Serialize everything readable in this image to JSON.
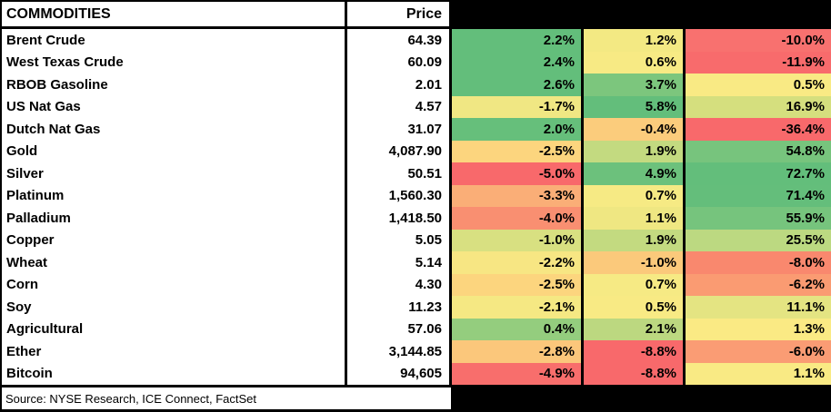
{
  "header": {
    "commodities_label": "COMMODITIES",
    "price_label": "Price"
  },
  "source": {
    "text": "Source: NYSE Research, ICE Connect, FactSet"
  },
  "palette": {
    "scale_green": "#63BE7B",
    "scale_yellow": "#F8EA84",
    "scale_red": "#F8696B",
    "grid_border": "#000000",
    "cell_bg": "#FFFFFF"
  },
  "rows": [
    {
      "name": "Brent Crude",
      "price": "64.39",
      "chg1": {
        "v": "2.2%",
        "c": "#63BE7B"
      },
      "chg2": {
        "v": "1.2%",
        "c": "#F3E983"
      },
      "chg3": {
        "v": "-10.0%",
        "c": "#F8716F"
      }
    },
    {
      "name": "West Texas Crude",
      "price": "60.09",
      "chg1": {
        "v": "2.4%",
        "c": "#63BE7B"
      },
      "chg2": {
        "v": "0.6%",
        "c": "#F7EA84"
      },
      "chg3": {
        "v": "-11.9%",
        "c": "#F86B6C"
      }
    },
    {
      "name": "RBOB Gasoline",
      "price": "2.01",
      "chg1": {
        "v": "2.6%",
        "c": "#63BE7B"
      },
      "chg2": {
        "v": "3.7%",
        "c": "#7CC67D"
      },
      "chg3": {
        "v": "0.5%",
        "c": "#F9EA84"
      }
    },
    {
      "name": "US Nat Gas",
      "price": "4.57",
      "chg1": {
        "v": "-1.7%",
        "c": "#F0E783"
      },
      "chg2": {
        "v": "5.8%",
        "c": "#63BE7B"
      },
      "chg3": {
        "v": "16.9%",
        "c": "#D5DF7E"
      }
    },
    {
      "name": "Dutch Nat Gas",
      "price": "31.07",
      "chg1": {
        "v": "2.0%",
        "c": "#66BF7B"
      },
      "chg2": {
        "v": "-0.4%",
        "c": "#FBCC7C"
      },
      "chg3": {
        "v": "-36.4%",
        "c": "#F8696B"
      }
    },
    {
      "name": "Gold",
      "price": "4,087.90",
      "chg1": {
        "v": "-2.5%",
        "c": "#FCD57E"
      },
      "chg2": {
        "v": "1.9%",
        "c": "#C3DA80"
      },
      "chg3": {
        "v": "54.8%",
        "c": "#77C47D"
      }
    },
    {
      "name": "Silver",
      "price": "50.51",
      "chg1": {
        "v": "-5.0%",
        "c": "#F8696B"
      },
      "chg2": {
        "v": "4.9%",
        "c": "#6CC17C"
      },
      "chg3": {
        "v": "72.7%",
        "c": "#63BE7B"
      }
    },
    {
      "name": "Platinum",
      "price": "1,560.30",
      "chg1": {
        "v": "-3.3%",
        "c": "#FAAE77"
      },
      "chg2": {
        "v": "0.7%",
        "c": "#F6EA84"
      },
      "chg3": {
        "v": "71.4%",
        "c": "#64BE7B"
      }
    },
    {
      "name": "Palladium",
      "price": "1,418.50",
      "chg1": {
        "v": "-4.0%",
        "c": "#F98F71"
      },
      "chg2": {
        "v": "1.1%",
        "c": "#EFE782"
      },
      "chg3": {
        "v": "55.9%",
        "c": "#76C47D"
      }
    },
    {
      "name": "Copper",
      "price": "5.05",
      "chg1": {
        "v": "-1.0%",
        "c": "#D8E081"
      },
      "chg2": {
        "v": "1.9%",
        "c": "#C3DA80"
      },
      "chg3": {
        "v": "25.5%",
        "c": "#BCD981"
      }
    },
    {
      "name": "Wheat",
      "price": "5.14",
      "chg1": {
        "v": "-2.2%",
        "c": "#F7E683"
      },
      "chg2": {
        "v": "-1.0%",
        "c": "#FBC97B"
      },
      "chg3": {
        "v": "-8.0%",
        "c": "#F9886E"
      }
    },
    {
      "name": "Corn",
      "price": "4.30",
      "chg1": {
        "v": "-2.5%",
        "c": "#FCD57E"
      },
      "chg2": {
        "v": "0.7%",
        "c": "#F6EA84"
      },
      "chg3": {
        "v": "-6.2%",
        "c": "#FA9B72"
      }
    },
    {
      "name": "Soy",
      "price": "11.23",
      "chg1": {
        "v": "-2.1%",
        "c": "#F5E883"
      },
      "chg2": {
        "v": "0.5%",
        "c": "#F8EA84"
      },
      "chg3": {
        "v": "11.1%",
        "c": "#E4E482"
      }
    },
    {
      "name": "Agricultural",
      "price": "57.06",
      "chg1": {
        "v": "0.4%",
        "c": "#94CD7E"
      },
      "chg2": {
        "v": "2.1%",
        "c": "#BCD880"
      },
      "chg3": {
        "v": "1.3%",
        "c": "#FAEA84"
      }
    },
    {
      "name": "Ether",
      "price": "3,144.85",
      "chg1": {
        "v": "-2.8%",
        "c": "#FBC77B"
      },
      "chg2": {
        "v": "-8.8%",
        "c": "#F8696B"
      },
      "chg3": {
        "v": "-6.0%",
        "c": "#FA9C74"
      }
    },
    {
      "name": "Bitcoin",
      "price": "94,605",
      "chg1": {
        "v": "-4.9%",
        "c": "#F86E6C"
      },
      "chg2": {
        "v": "-8.8%",
        "c": "#F8696B"
      },
      "chg3": {
        "v": "1.1%",
        "c": "#F9EA84"
      }
    }
  ]
}
